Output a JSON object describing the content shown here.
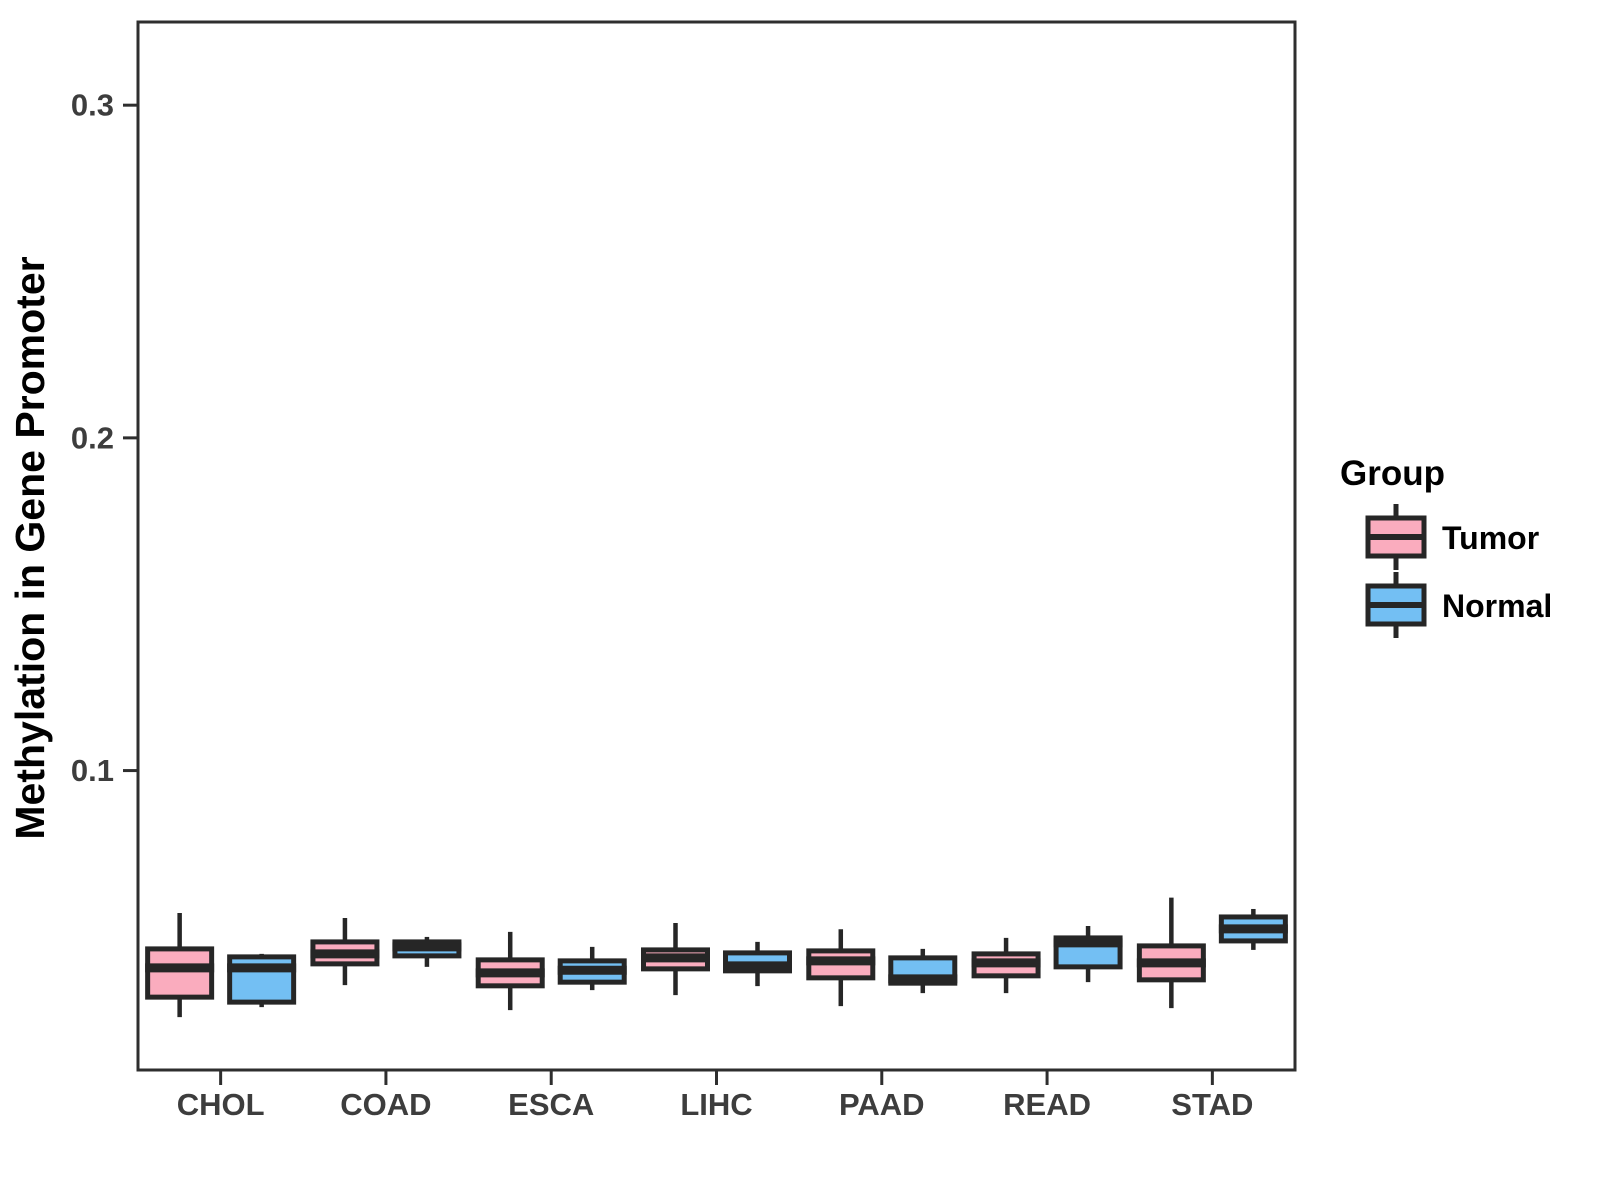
{
  "figure": {
    "background": "#ffffff"
  },
  "chart_data": {
    "type": "boxplot",
    "title": "",
    "xlabel": "",
    "ylabel": "Methylation in Gene Promoter",
    "categories": [
      "CHOL",
      "COAD",
      "ESCA",
      "LIHC",
      "PAAD",
      "READ",
      "STAD"
    ],
    "y_axis": {
      "ticks": [
        0.1,
        0.2,
        0.3
      ],
      "tick_labels": [
        "0.1",
        "0.2",
        "0.3"
      ],
      "ylim": [
        0.01,
        0.325
      ],
      "grid": false
    },
    "legend": {
      "title": "Group",
      "position": "right"
    },
    "groups": [
      {
        "name": "Tumor",
        "color": "#FAACBE"
      },
      {
        "name": "Normal",
        "color": "#73BFF3"
      }
    ],
    "style": {
      "box_border": "#262626",
      "panel_border": "#2e2e2e",
      "tick_text_color": "#3d3d3d",
      "title_text_color": "#000000"
    },
    "series": [
      {
        "group": "Tumor",
        "values": [
          {
            "category": "CHOL",
            "whisker_low": 0.0259,
            "q1": 0.0319,
            "median": 0.0407,
            "q3": 0.0464,
            "whisker_high": 0.0572
          },
          {
            "category": "COAD",
            "whisker_low": 0.0355,
            "q1": 0.0419,
            "median": 0.0449,
            "q3": 0.0485,
            "whisker_high": 0.0557
          },
          {
            "category": "ESCA",
            "whisker_low": 0.028,
            "q1": 0.0353,
            "median": 0.0392,
            "q3": 0.0431,
            "whisker_high": 0.0515
          },
          {
            "category": "LIHC",
            "whisker_low": 0.0325,
            "q1": 0.0404,
            "median": 0.0437,
            "q3": 0.0461,
            "whisker_high": 0.0542
          },
          {
            "category": "PAAD",
            "whisker_low": 0.0292,
            "q1": 0.0377,
            "median": 0.0428,
            "q3": 0.0458,
            "whisker_high": 0.0523
          },
          {
            "category": "READ",
            "whisker_low": 0.0331,
            "q1": 0.0383,
            "median": 0.0422,
            "q3": 0.0449,
            "whisker_high": 0.0497
          },
          {
            "category": "STAD",
            "whisker_low": 0.0286,
            "q1": 0.0371,
            "median": 0.0422,
            "q3": 0.0473,
            "whisker_high": 0.0618
          }
        ]
      },
      {
        "group": "Normal",
        "values": [
          {
            "category": "CHOL",
            "whisker_low": 0.0289,
            "q1": 0.0304,
            "median": 0.0407,
            "q3": 0.044,
            "whisker_high": 0.0449
          },
          {
            "category": "COAD",
            "whisker_low": 0.041,
            "q1": 0.0443,
            "median": 0.047,
            "q3": 0.0485,
            "whisker_high": 0.05
          },
          {
            "category": "ESCA",
            "whisker_low": 0.034,
            "q1": 0.0364,
            "median": 0.04,
            "q3": 0.0428,
            "whisker_high": 0.047
          },
          {
            "category": "LIHC",
            "whisker_low": 0.0352,
            "q1": 0.0398,
            "median": 0.0413,
            "q3": 0.0452,
            "whisker_high": 0.0485
          },
          {
            "category": "PAAD",
            "whisker_low": 0.0331,
            "q1": 0.0361,
            "median": 0.0374,
            "q3": 0.0437,
            "whisker_high": 0.0464
          },
          {
            "category": "READ",
            "whisker_low": 0.0364,
            "q1": 0.041,
            "median": 0.0482,
            "q3": 0.0497,
            "whisker_high": 0.0533
          },
          {
            "category": "STAD",
            "whisker_low": 0.0461,
            "q1": 0.0488,
            "median": 0.0524,
            "q3": 0.056,
            "whisker_high": 0.0584
          }
        ]
      }
    ]
  }
}
